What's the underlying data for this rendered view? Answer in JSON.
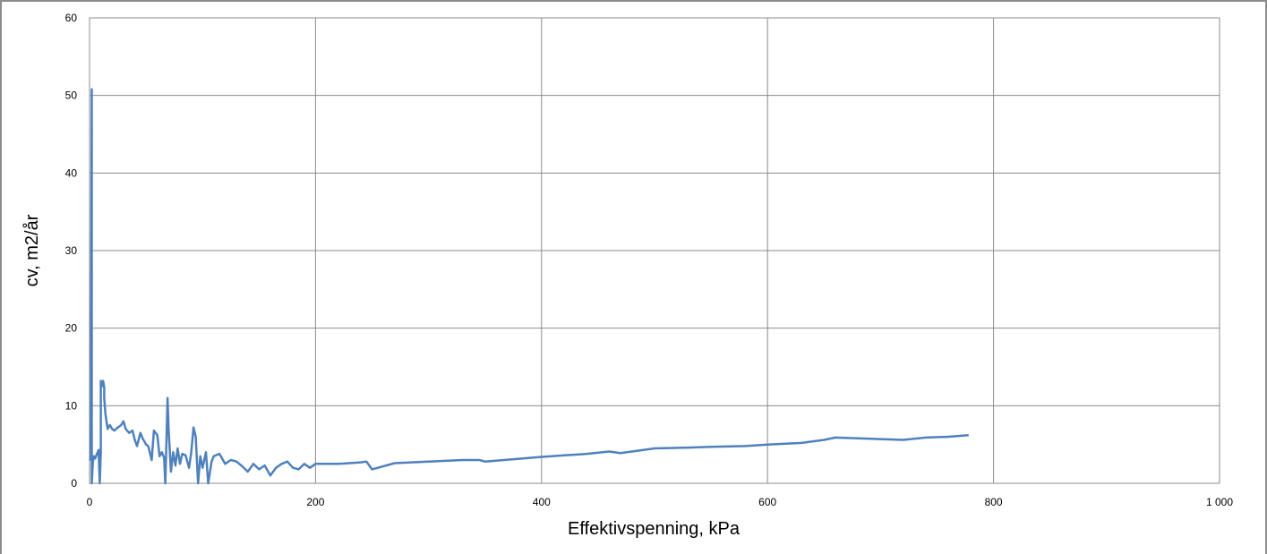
{
  "chart_data": {
    "type": "line",
    "title": "",
    "xlabel": "Effektivspenning, kPa",
    "ylabel": "cv, m2/år",
    "xlim": [
      0,
      1000
    ],
    "ylim": [
      0,
      60
    ],
    "x_ticks": [
      0,
      200,
      400,
      600,
      800,
      1000
    ],
    "x_tick_labels": [
      "0",
      "200",
      "400",
      "600",
      "800",
      "1 000"
    ],
    "y_ticks": [
      0,
      10,
      20,
      30,
      40,
      50,
      60
    ],
    "y_tick_labels": [
      "0",
      "10",
      "20",
      "30",
      "40",
      "50",
      "60"
    ],
    "grid": true,
    "legend": "none",
    "line_color": "#4f81bd",
    "series": [
      {
        "x": [
          0,
          1,
          2,
          2,
          3,
          3,
          4,
          5,
          6,
          8,
          9,
          10,
          10,
          11,
          11,
          12,
          13,
          13,
          14,
          15,
          16,
          17,
          18,
          20,
          22,
          25,
          28,
          30,
          32,
          35,
          38,
          40,
          42,
          45,
          47,
          50,
          52,
          55,
          57,
          60,
          62,
          64,
          66,
          67,
          68,
          69,
          70,
          72,
          74,
          76,
          78,
          80,
          82,
          85,
          88,
          90,
          92,
          94,
          96,
          98,
          100,
          103,
          105,
          108,
          110,
          115,
          120,
          125,
          130,
          135,
          140,
          145,
          150,
          155,
          160,
          165,
          170,
          175,
          180,
          185,
          190,
          195,
          200,
          220,
          240,
          245,
          250,
          270,
          300,
          330,
          345,
          350,
          400,
          420,
          440,
          460,
          470,
          500,
          530,
          550,
          580,
          600,
          630,
          650,
          660,
          680,
          700,
          720,
          740,
          760,
          778
        ],
        "y": [
          3,
          3.2,
          50.8,
          0,
          3,
          2.8,
          3.5,
          3.2,
          3.6,
          4.3,
          0,
          4,
          13.2,
          12.5,
          12.9,
          13.2,
          12.4,
          11,
          9,
          8,
          7,
          7.3,
          7.5,
          7,
          6.8,
          7.2,
          7.5,
          8,
          7,
          6.5,
          6.8,
          5.6,
          4.8,
          6.5,
          5.8,
          5,
          4.8,
          3,
          6.8,
          6.2,
          3.5,
          4,
          3.3,
          0,
          5,
          11,
          7,
          1.5,
          4,
          2.3,
          4.5,
          2.5,
          3.8,
          3.6,
          2,
          4,
          7.2,
          6,
          0,
          3.5,
          2,
          4,
          0,
          2.8,
          3.5,
          3.8,
          2.5,
          3,
          2.8,
          2.2,
          1.5,
          2.5,
          1.8,
          2.3,
          1,
          2,
          2.5,
          2.8,
          2,
          1.8,
          2.5,
          2,
          2.5,
          2.5,
          2.7,
          2.8,
          1.8,
          2.6,
          2.8,
          3,
          3,
          2.8,
          3.4,
          3.6,
          3.8,
          4.1,
          3.9,
          4.5,
          4.6,
          4.7,
          4.8,
          5,
          5.2,
          5.6,
          5.9,
          5.8,
          5.7,
          5.6,
          5.9,
          6,
          6.2
        ]
      }
    ]
  }
}
